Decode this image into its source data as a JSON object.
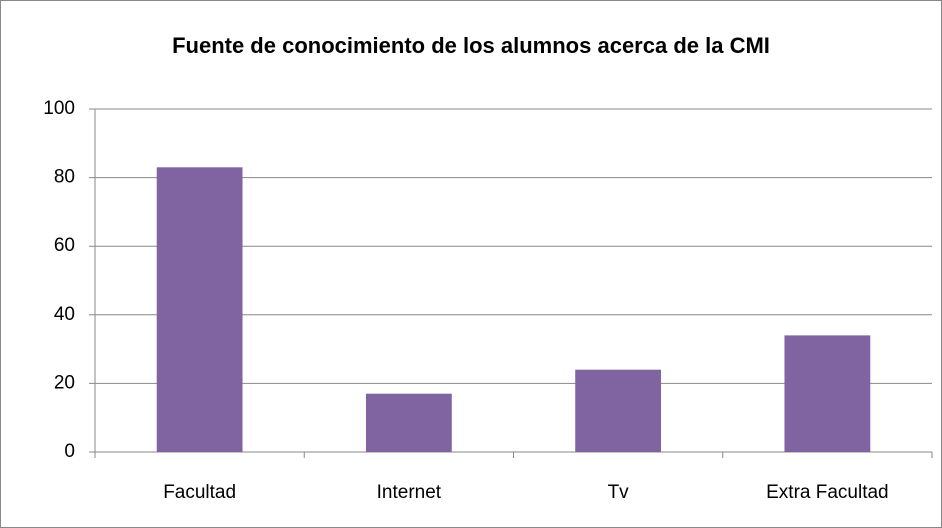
{
  "chart_data": {
    "type": "bar",
    "title": "Fuente de conocimiento de los alumnos acerca de la CMI",
    "categories": [
      "Facultad",
      "Internet",
      "Tv",
      "Extra Facultad"
    ],
    "values": [
      83,
      17,
      24,
      34
    ],
    "color": "#8064a2",
    "ylim": [
      0,
      100
    ],
    "yticks": [
      0,
      20,
      40,
      60,
      80,
      100
    ],
    "grid": true
  }
}
